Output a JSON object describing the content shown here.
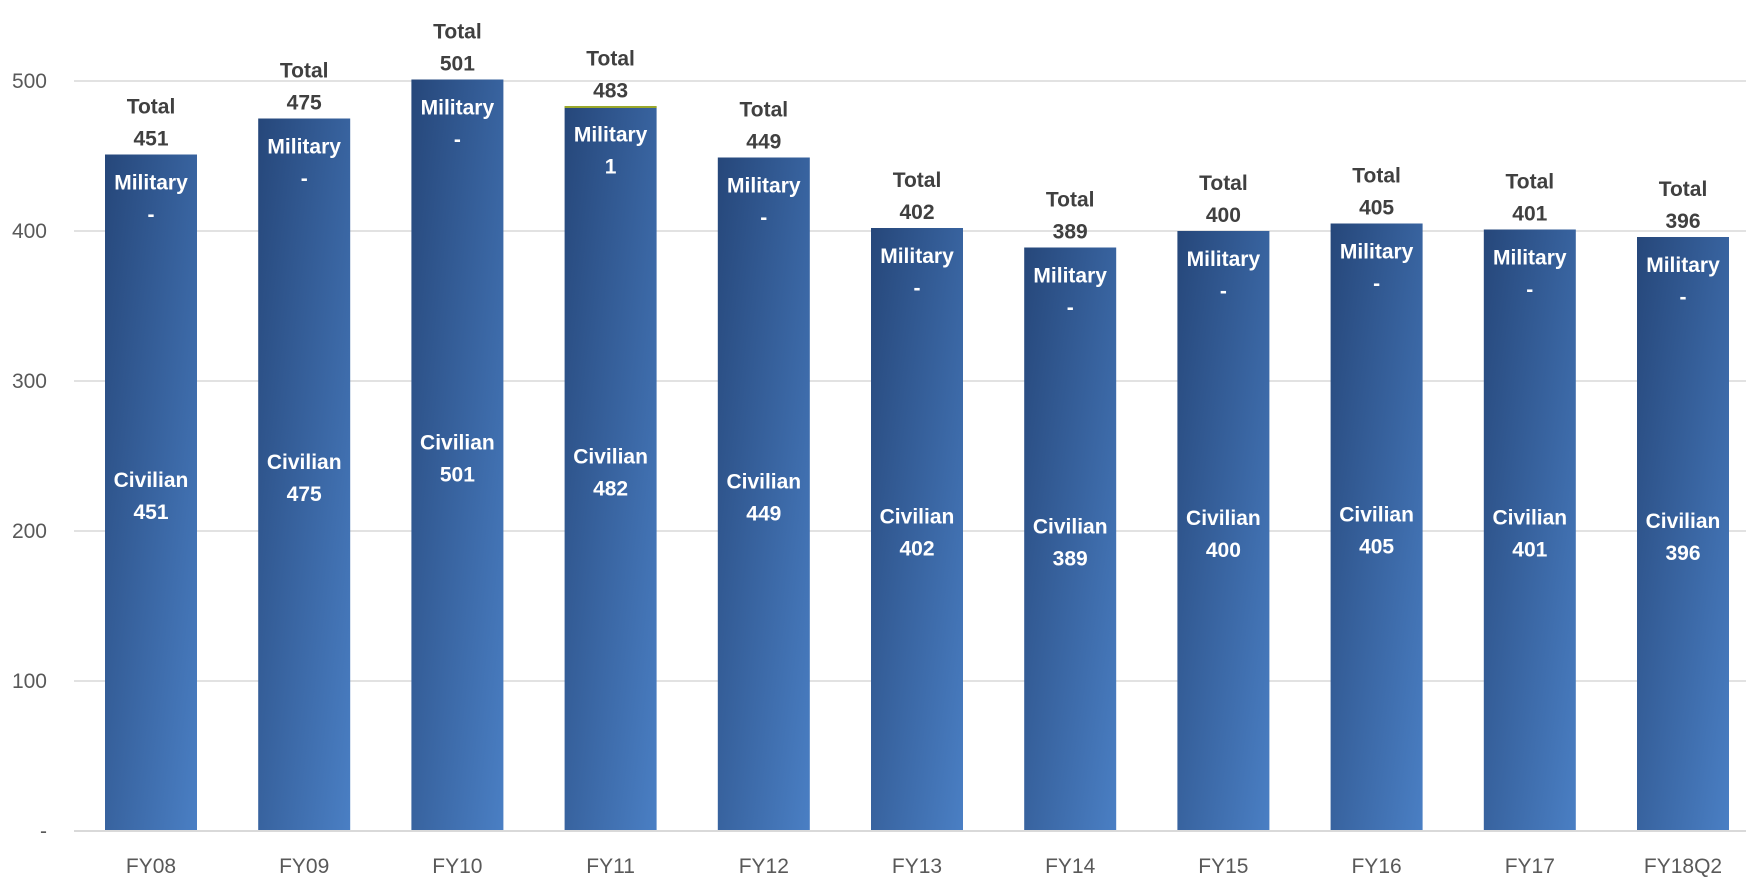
{
  "chart_data": {
    "type": "bar",
    "stacked": true,
    "categories": [
      "FY08",
      "FY09",
      "FY10",
      "FY11",
      "FY12",
      "FY13",
      "FY14",
      "FY15",
      "FY16",
      "FY17",
      "FY18Q2"
    ],
    "series": [
      {
        "name": "Civilian",
        "values": [
          451,
          475,
          501,
          482,
          449,
          402,
          389,
          400,
          405,
          401,
          396
        ]
      },
      {
        "name": "Military",
        "values": [
          0,
          0,
          0,
          1,
          0,
          0,
          0,
          0,
          0,
          0,
          0
        ]
      }
    ],
    "totals": [
      451,
      475,
      501,
      483,
      449,
      402,
      389,
      400,
      405,
      401,
      396
    ],
    "total_label": "Total",
    "zero_label": "-",
    "y_ticks": [
      {
        "value": 0,
        "label": "-"
      },
      {
        "value": 100,
        "label": "100"
      },
      {
        "value": 200,
        "label": "200"
      },
      {
        "value": 300,
        "label": "300"
      },
      {
        "value": 400,
        "label": "400"
      },
      {
        "value": 500,
        "label": "500"
      }
    ],
    "ylim": [
      0,
      500
    ],
    "grid": true,
    "legend": "none",
    "title": "",
    "xlabel": "",
    "ylabel": "",
    "colors": {
      "bar_dark": "#26477a",
      "bar_light": "#4a7fc4",
      "military_segment": "#9aa82b",
      "grid": "#d9d9d9",
      "axis": "#d9d9d9"
    }
  }
}
